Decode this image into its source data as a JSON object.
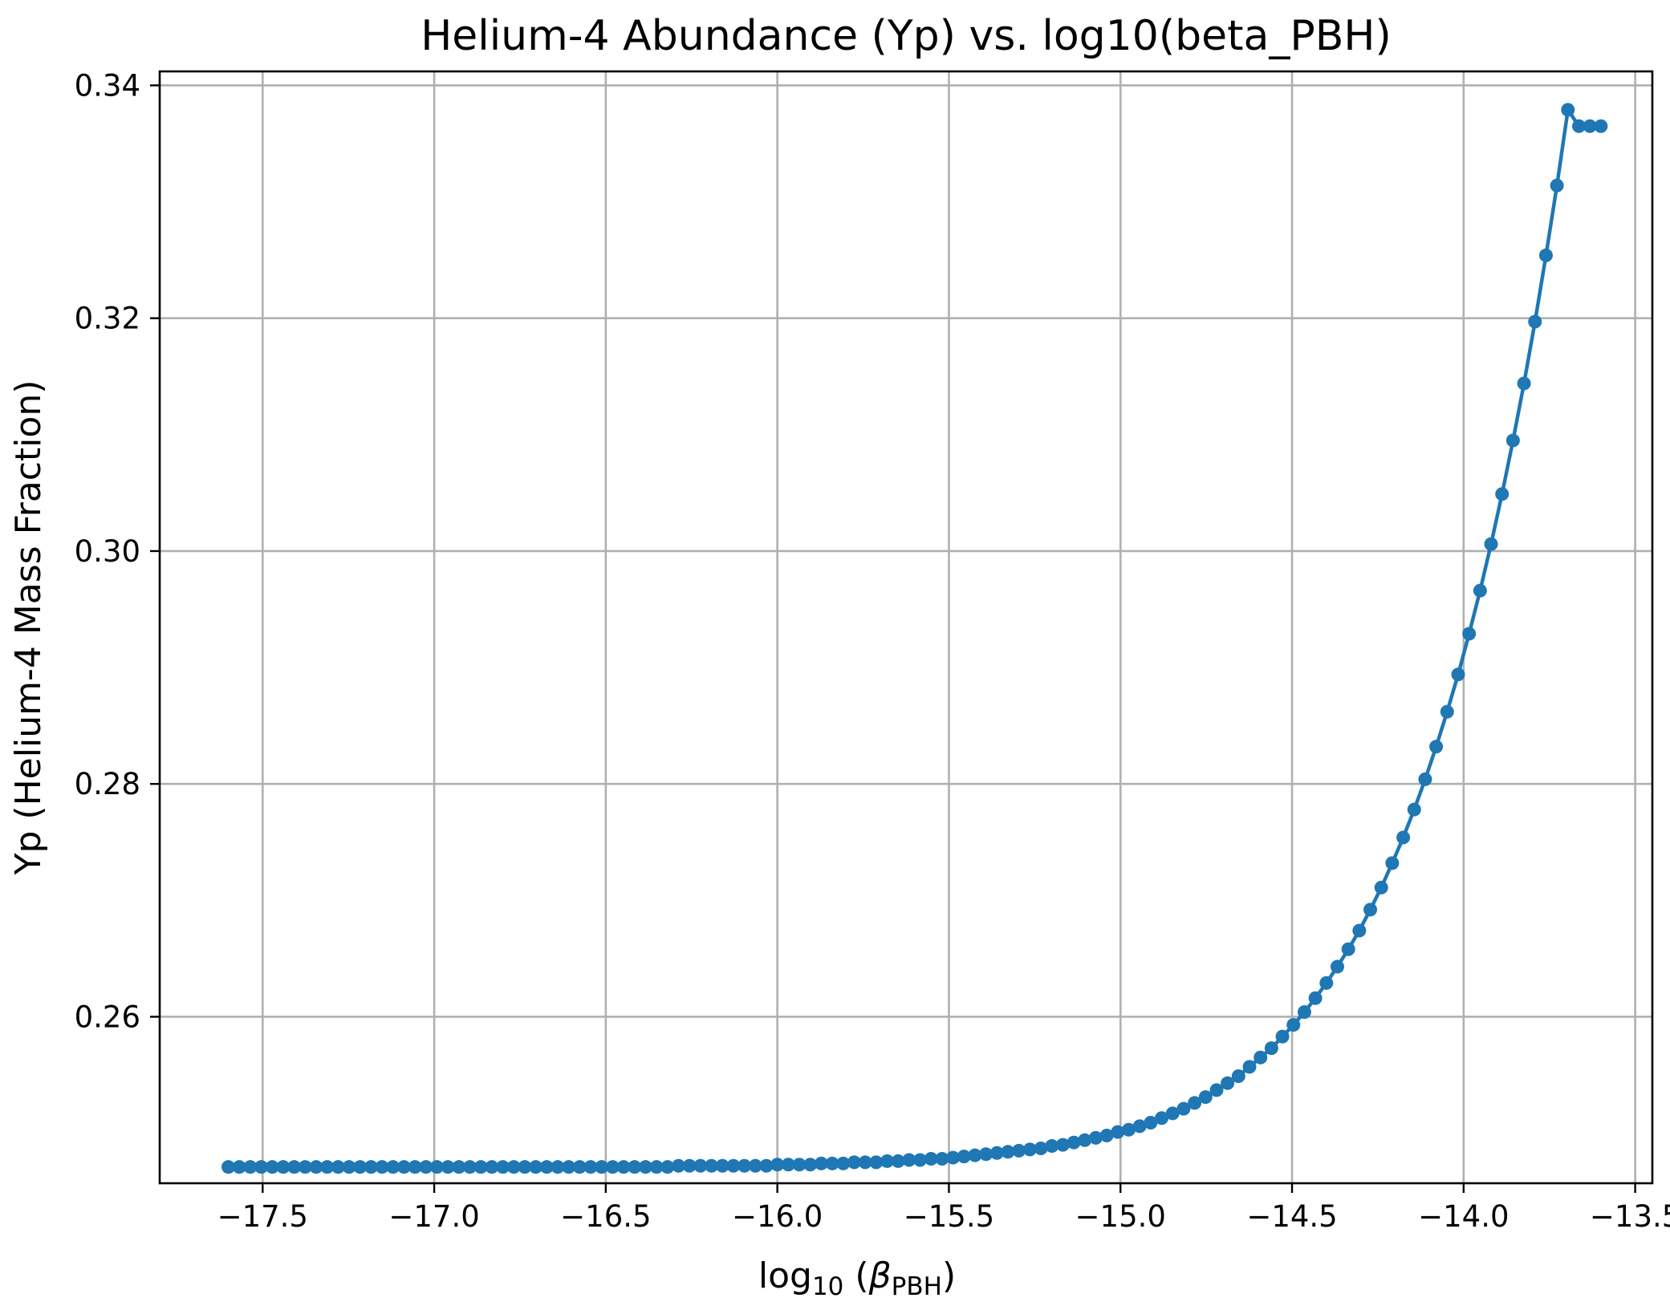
{
  "chart_data": {
    "type": "line",
    "title": "Helium-4 Abundance (Yp) vs. log10(beta_PBH)",
    "xlabel": {
      "base": "log",
      "subscript": "10",
      "open": " (",
      "symbol": "β",
      "symbol_subscript": "PBH",
      "close": ")"
    },
    "ylabel": "Yp (Helium-4 Mass Fraction)",
    "xlim": [
      -17.8,
      -13.45
    ],
    "ylim": [
      0.2457,
      0.3412
    ],
    "x_ticks": [
      -17.5,
      -17.0,
      -16.5,
      -16.0,
      -15.5,
      -15.0,
      -14.5,
      -14.0,
      -13.5
    ],
    "x_tick_labels": [
      "−17.5",
      "−17.0",
      "−16.5",
      "−16.0",
      "−15.5",
      "−15.0",
      "−14.5",
      "−14.0",
      "−13.5"
    ],
    "y_ticks": [
      0.26,
      0.28,
      0.3,
      0.32,
      0.34
    ],
    "y_tick_labels": [
      "0.26",
      "0.28",
      "0.30",
      "0.32",
      "0.34"
    ],
    "grid": true,
    "series": [
      {
        "color": "#1f77b4",
        "marker": "circle",
        "x_start": -17.6,
        "x_end": -13.6,
        "points": 126,
        "values": [
          0.2471,
          0.2471,
          0.2471,
          0.2471,
          0.2471,
          0.2471,
          0.2471,
          0.2471,
          0.2471,
          0.2471,
          0.2471,
          0.2471,
          0.2471,
          0.2471,
          0.2471,
          0.2471,
          0.2471,
          0.2471,
          0.2471,
          0.2471,
          0.2471,
          0.2471,
          0.2471,
          0.2471,
          0.2471,
          0.2471,
          0.2471,
          0.2471,
          0.2471,
          0.2471,
          0.2471,
          0.2471,
          0.2471,
          0.2471,
          0.2471,
          0.2471,
          0.2471,
          0.2471,
          0.2471,
          0.2471,
          0.2471,
          0.2472,
          0.2472,
          0.2472,
          0.2472,
          0.2472,
          0.2472,
          0.2472,
          0.2472,
          0.2472,
          0.2473,
          0.2473,
          0.2473,
          0.2473,
          0.2474,
          0.2474,
          0.2474,
          0.2475,
          0.2475,
          0.2475,
          0.2476,
          0.2476,
          0.2477,
          0.2477,
          0.2478,
          0.2478,
          0.2479,
          0.248,
          0.2481,
          0.2482,
          0.2483,
          0.2484,
          0.2485,
          0.2486,
          0.2487,
          0.2489,
          0.249,
          0.2492,
          0.2494,
          0.2496,
          0.2498,
          0.2501,
          0.2503,
          0.2506,
          0.2509,
          0.2513,
          0.2517,
          0.2521,
          0.2526,
          0.2531,
          0.2537,
          0.2543,
          0.2549,
          0.2557,
          0.2565,
          0.2573,
          0.2583,
          0.2593,
          0.2604,
          0.2616,
          0.2629,
          0.2643,
          0.2658,
          0.2674,
          0.2692,
          0.2711,
          0.2732,
          0.2754,
          0.2778,
          0.2804,
          0.2832,
          0.2862,
          0.2894,
          0.2929,
          0.2966,
          0.3006,
          0.3049,
          0.3095,
          0.3144,
          0.3197,
          0.3254,
          0.3314,
          0.3379,
          0.3365,
          0.3365,
          0.3365
        ]
      }
    ]
  }
}
